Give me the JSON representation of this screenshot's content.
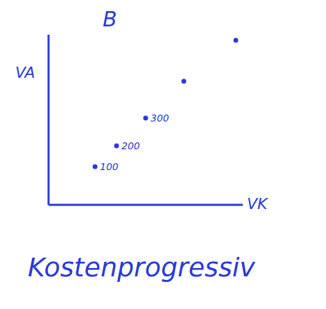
{
  "chart_data": {
    "type": "scatter",
    "title": "B",
    "subtitle": "Kostenprogressiv",
    "x_label": "VK",
    "y_label": "VA",
    "x": [
      67,
      98,
      140,
      195,
      270
    ],
    "values": [
      55,
      85,
      125,
      178,
      237
    ],
    "point_labels": [
      100,
      200,
      300,
      null,
      null
    ],
    "xlim": [
      0,
      280
    ],
    "ylim": [
      0,
      245
    ],
    "tick_labels": false,
    "grid": false,
    "color": "#2a3ad8"
  }
}
